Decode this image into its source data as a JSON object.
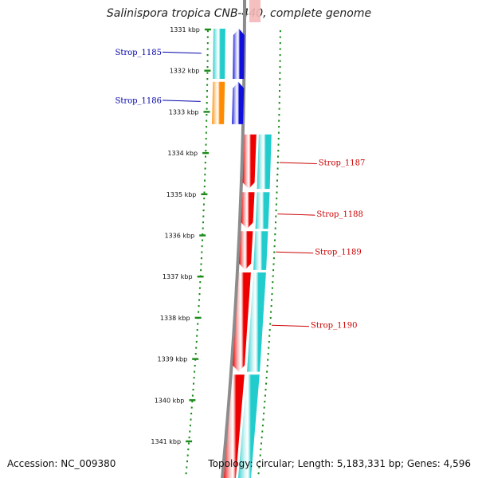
{
  "title": "Salinispora tropica CNB-440, complete genome",
  "accession_text": "Accession: NC_009380",
  "topology_text": "Topology: circular; Length: 5,183,331 bp; Genes: 4,596",
  "colors": {
    "backbone": "#8c8c8c",
    "tick": "#1a8a1a",
    "reverse_label": "#0000aa",
    "forward_label": "#cc0000",
    "red_cds": "#ee0000",
    "blue_cds": "#1010dd",
    "cyan_gene": "#22cccc",
    "orange_gene": "#ff8c00"
  },
  "scale": {
    "unit": "kbp",
    "ticks": [
      {
        "pos": 1331,
        "label": "1331 kbp"
      },
      {
        "pos": 1332,
        "label": "1332 kbp"
      },
      {
        "pos": 1333,
        "label": "1333 kbp"
      },
      {
        "pos": 1334,
        "label": "1334 kbp"
      },
      {
        "pos": 1335,
        "label": "1335 kbp"
      },
      {
        "pos": 1336,
        "label": "1336 kbp"
      },
      {
        "pos": 1337,
        "label": "1337 kbp"
      },
      {
        "pos": 1338,
        "label": "1338 kbp"
      },
      {
        "pos": 1339,
        "label": "1339 kbp"
      },
      {
        "pos": 1340,
        "label": "1340 kbp"
      },
      {
        "pos": 1341,
        "label": "1341 kbp"
      }
    ]
  },
  "features": [
    {
      "name": "Strop_1185",
      "strand": "reverse",
      "start": 1330.98,
      "end": 1332.2,
      "gene_color": "cyan_gene",
      "cds_color": "blue_cds",
      "label_at": 1331.55
    },
    {
      "name": "Strop_1186",
      "strand": "reverse",
      "start": 1332.27,
      "end": 1333.3,
      "gene_color": "orange_gene",
      "cds_color": "blue_cds",
      "label_at": 1332.72
    },
    {
      "name": "Strop_1187",
      "strand": "forward",
      "start": 1333.55,
      "end": 1334.87,
      "gene_color": "cyan_gene",
      "cds_color": "red_cds",
      "label_at": 1334.23
    },
    {
      "name": "Strop_1188",
      "strand": "forward",
      "start": 1334.95,
      "end": 1335.84,
      "gene_color": "cyan_gene",
      "cds_color": "red_cds",
      "label_at": 1335.48
    },
    {
      "name": "Strop_1189",
      "strand": "forward",
      "start": 1335.9,
      "end": 1336.84,
      "gene_color": "cyan_gene",
      "cds_color": "red_cds",
      "label_at": 1336.4
    },
    {
      "name": "Strop_1190",
      "strand": "forward",
      "start": 1336.9,
      "end": 1339.31,
      "gene_color": "cyan_gene",
      "cds_color": "red_cds",
      "label_at": 1338.18
    },
    {
      "name": "",
      "strand": "forward",
      "start": 1339.38,
      "end": 1342.0,
      "gene_color": "cyan_gene",
      "cds_color": "red_cds",
      "label_at": null
    }
  ]
}
